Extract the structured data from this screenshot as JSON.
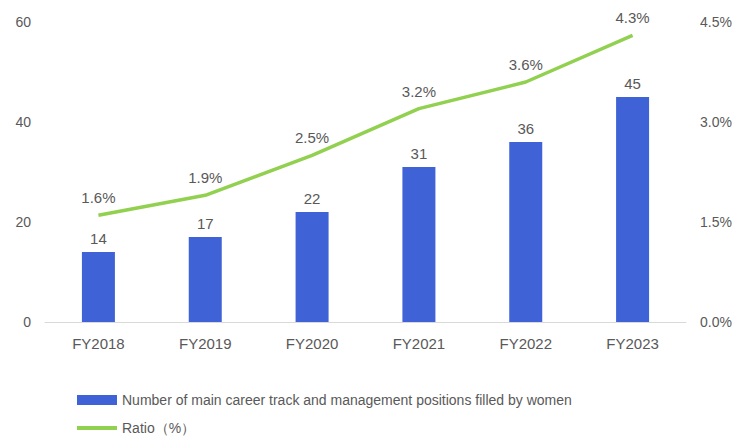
{
  "chart_data": {
    "type": "bar",
    "categories": [
      "FY2018",
      "FY2019",
      "FY2020",
      "FY2021",
      "FY2022",
      "FY2023"
    ],
    "series": [
      {
        "name": "Number of main career track and management positions filled by women",
        "type": "bar",
        "color": "#3f62d6",
        "values": [
          14,
          17,
          22,
          31,
          36,
          45
        ],
        "data_labels": true
      },
      {
        "name": "Ratio（%）",
        "type": "line",
        "color": "#92d050",
        "axis": "y2",
        "marker": "none",
        "values": [
          1.6,
          1.9,
          2.5,
          3.2,
          3.6,
          4.3
        ],
        "value_labels": [
          "1.6%",
          "1.9%",
          "2.5%",
          "3.2%",
          "3.6%",
          "4.3%"
        ],
        "data_labels": true
      }
    ],
    "ylim": [
      0,
      60
    ],
    "yticks": [
      0,
      20,
      40,
      60
    ],
    "y2lim": [
      0,
      4.5
    ],
    "y2ticks": [
      {
        "value": 0,
        "label": "0.0%"
      },
      {
        "value": 1.5,
        "label": "1.5%"
      },
      {
        "value": 3,
        "label": "3.0%"
      },
      {
        "value": 4.5,
        "label": "4.5%"
      }
    ],
    "grid": false,
    "legend": "bottom"
  }
}
